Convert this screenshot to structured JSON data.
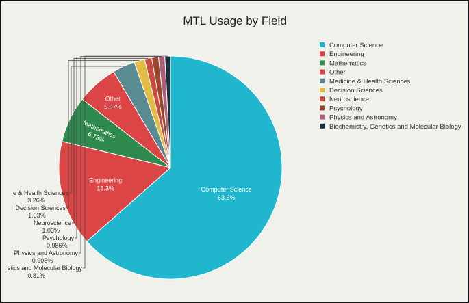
{
  "chart_data": {
    "type": "pie",
    "title": "MTL Usage by Field",
    "legend_position": "right",
    "slices": [
      {
        "label": "Computer Science",
        "value": 63.5,
        "display": "63.5%",
        "color": "#20b6cd",
        "label_mode": "inside"
      },
      {
        "label": "Engineering",
        "value": 15.3,
        "display": "15.3%",
        "color": "#dc4545",
        "label_mode": "inside"
      },
      {
        "label": "Mathematics",
        "value": 6.73,
        "display": "6.73%",
        "color": "#2f8a4d",
        "label_mode": "inside"
      },
      {
        "label": "Other",
        "value": 5.97,
        "display": "5.97%",
        "color": "#dc4545",
        "label_mode": "inside"
      },
      {
        "label": "Medicine & Health Sciences",
        "value": 3.26,
        "display": "3.26%",
        "color": "#5a8a92",
        "label_mode": "outside",
        "shown_label": "e & Health Sciences"
      },
      {
        "label": "Decision Sciences",
        "value": 1.53,
        "display": "1.53%",
        "color": "#e2bd45",
        "label_mode": "outside"
      },
      {
        "label": "Neuroscience",
        "value": 1.03,
        "display": "1.03%",
        "color": "#c94a3c",
        "label_mode": "outside"
      },
      {
        "label": "Psychology",
        "value": 0.986,
        "display": "0.986%",
        "color": "#9c4630",
        "label_mode": "outside"
      },
      {
        "label": "Physics and Astronomy",
        "value": 0.905,
        "display": "0.905%",
        "color": "#ad5f78",
        "label_mode": "outside"
      },
      {
        "label": "Biochemistry, Genetics and Molecular Biology",
        "value": 0.81,
        "display": "0.81%",
        "color": "#1b2f3e",
        "label_mode": "outside",
        "shown_label": "etics and Molecular Biology"
      }
    ]
  }
}
